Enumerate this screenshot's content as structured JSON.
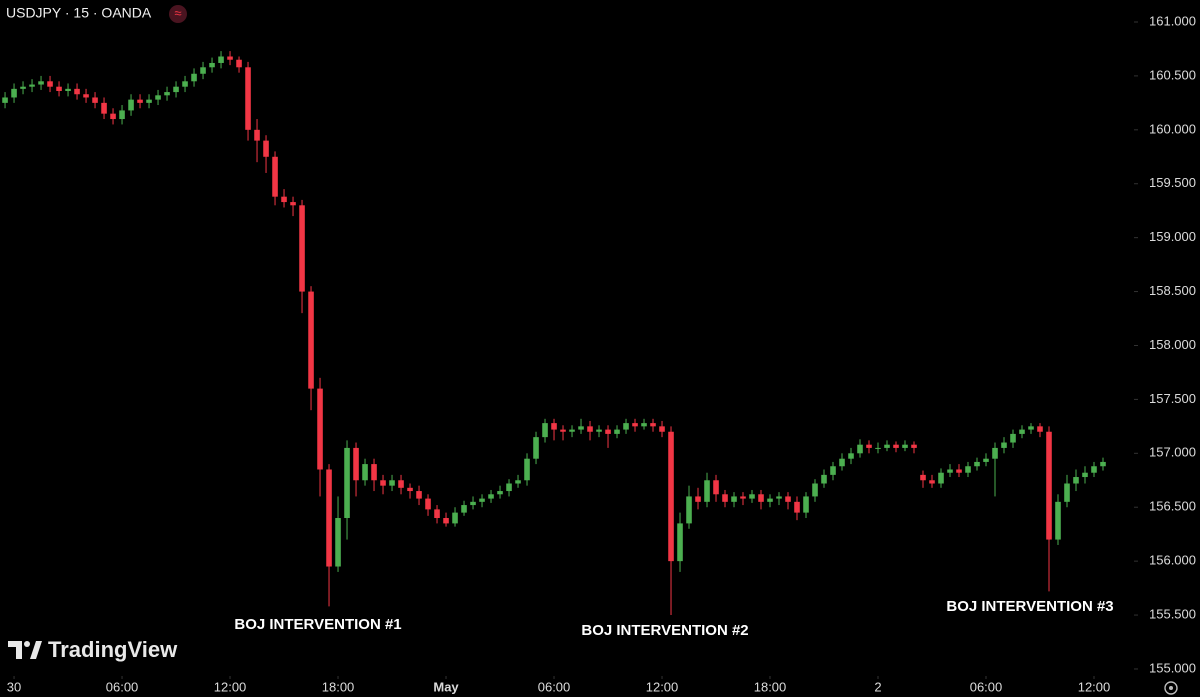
{
  "chart_data": {
    "type": "candlestick",
    "title": "USDJPY · 15 · OANDA",
    "status_icon": "≈",
    "brand": "TradingView",
    "up_color": "#4caf50",
    "down_color": "#f23645",
    "annotations": [
      "BOJ INTERVENTION #1",
      "BOJ INTERVENTION #2",
      "BOJ INTERVENTION #3"
    ],
    "xlim": [
      -0.78,
      62
    ],
    "xticks": [
      {
        "value": 0,
        "label": "30"
      },
      {
        "value": 6,
        "label": "06:00"
      },
      {
        "value": 12,
        "label": "12:00"
      },
      {
        "value": 18,
        "label": "18:00"
      },
      {
        "value": 24,
        "label": "May"
      },
      {
        "value": 30,
        "label": "06:00"
      },
      {
        "value": 36,
        "label": "12:00"
      },
      {
        "value": 42,
        "label": "18:00"
      },
      {
        "value": 48,
        "label": "2"
      },
      {
        "value": 54,
        "label": "06:00"
      },
      {
        "value": 60,
        "label": "12:00"
      }
    ],
    "ylim": [
      154.74,
      161.204
    ],
    "yticks": [
      {
        "value": 155,
        "label": "155.000"
      },
      {
        "value": 155.5,
        "label": "155.500"
      },
      {
        "value": 156,
        "label": "156.000"
      },
      {
        "value": 156.5,
        "label": "156.500"
      },
      {
        "value": 157,
        "label": "157.000"
      },
      {
        "value": 157.5,
        "label": "157.500"
      },
      {
        "value": 158,
        "label": "158.000"
      },
      {
        "value": 158.5,
        "label": "158.500"
      },
      {
        "value": 159,
        "label": "159.000"
      },
      {
        "value": 159.5,
        "label": "159.500"
      },
      {
        "value": 160,
        "label": "160.000"
      },
      {
        "value": 160.5,
        "label": "160.500"
      },
      {
        "value": 161,
        "label": "161.000"
      }
    ],
    "x": [
      -0.5,
      0,
      0.5,
      1,
      1.5,
      2,
      2.5,
      3,
      3.5,
      4,
      4.5,
      5,
      5.5,
      6,
      6.5,
      7,
      7.5,
      8,
      8.5,
      9,
      9.5,
      10,
      10.5,
      11,
      11.5,
      12,
      12.5,
      13,
      13.5,
      14,
      14.5,
      15,
      15.5,
      16,
      16.5,
      17,
      17.5,
      18,
      18.5,
      19,
      19.5,
      20,
      20.5,
      21,
      21.5,
      22,
      22.5,
      23,
      23.5,
      24,
      24.5,
      25,
      25.5,
      26,
      26.5,
      27,
      27.5,
      28,
      28.5,
      29,
      29.5,
      30,
      30.5,
      31,
      31.5,
      32,
      32.5,
      33,
      33.5,
      34,
      34.5,
      35,
      35.5,
      36,
      36.5,
      37,
      37.5,
      38,
      38.5,
      39,
      39.5,
      40,
      40.5,
      41,
      41.5,
      42,
      42.5,
      43,
      43.5,
      44,
      44.5,
      45,
      45.5,
      46,
      46.5,
      47,
      47.5,
      48,
      48.5,
      49,
      49.5,
      50,
      50.5,
      51,
      51.5,
      52,
      52.5,
      53,
      53.5,
      54,
      54.5,
      55,
      55.5,
      56,
      56.5,
      57,
      57.5,
      58,
      58.5,
      59,
      59.5,
      60,
      60.5
    ],
    "open": [
      160.25,
      160.3,
      160.38,
      160.4,
      160.42,
      160.45,
      160.4,
      160.36,
      160.38,
      160.33,
      160.3,
      160.25,
      160.15,
      160.1,
      160.18,
      160.28,
      160.25,
      160.28,
      160.32,
      160.35,
      160.4,
      160.45,
      160.52,
      160.58,
      160.62,
      160.68,
      160.65,
      160.58,
      160.0,
      159.9,
      159.75,
      159.38,
      159.33,
      159.3,
      158.5,
      157.6,
      156.85,
      155.95,
      156.4,
      157.05,
      156.75,
      156.9,
      156.75,
      156.7,
      156.75,
      156.68,
      156.65,
      156.58,
      156.48,
      156.4,
      156.35,
      156.45,
      156.52,
      156.55,
      156.58,
      156.62,
      156.65,
      156.72,
      156.75,
      156.95,
      157.15,
      157.28,
      157.22,
      157.2,
      157.22,
      157.25,
      157.2,
      157.22,
      157.18,
      157.22,
      157.28,
      157.25,
      157.28,
      157.25,
      157.2,
      156.0,
      156.35,
      156.6,
      156.55,
      156.75,
      156.62,
      156.55,
      156.6,
      156.58,
      156.62,
      156.55,
      156.58,
      156.6,
      156.55,
      156.45,
      156.6,
      156.72,
      156.8,
      156.88,
      156.95,
      157.0,
      157.08,
      157.05,
      157.05,
      157.08,
      157.05,
      157.08,
      156.8,
      156.75,
      156.72,
      156.82,
      156.85,
      156.82,
      156.88,
      156.92,
      156.95,
      157.05,
      157.1,
      157.18,
      157.22,
      157.25,
      157.2,
      156.2,
      156.55,
      156.72,
      156.78,
      156.82,
      156.88
    ],
    "high": [
      160.35,
      160.43,
      160.45,
      160.47,
      160.5,
      160.5,
      160.45,
      160.43,
      160.43,
      160.38,
      160.35,
      160.3,
      160.2,
      160.23,
      160.33,
      160.33,
      160.33,
      160.37,
      160.4,
      160.45,
      160.5,
      160.57,
      160.63,
      160.67,
      160.73,
      160.73,
      160.68,
      160.63,
      160.1,
      159.95,
      159.8,
      159.45,
      159.38,
      159.35,
      158.55,
      157.7,
      156.9,
      156.6,
      157.12,
      157.1,
      156.95,
      156.95,
      156.8,
      156.8,
      156.8,
      156.72,
      156.7,
      156.62,
      156.52,
      156.45,
      156.5,
      156.56,
      156.6,
      156.62,
      156.66,
      156.7,
      156.76,
      156.8,
      157.0,
      157.2,
      157.32,
      157.32,
      157.26,
      157.26,
      157.32,
      157.3,
      157.26,
      157.26,
      157.26,
      157.32,
      157.32,
      157.32,
      157.32,
      157.3,
      157.25,
      156.45,
      156.7,
      156.68,
      156.82,
      156.8,
      156.66,
      156.64,
      156.64,
      156.66,
      156.66,
      156.62,
      156.64,
      156.64,
      156.6,
      156.64,
      156.76,
      156.85,
      156.92,
      157.0,
      157.05,
      157.13,
      157.12,
      157.1,
      157.12,
      157.11,
      157.12,
      157.11,
      156.84,
      156.8,
      156.86,
      156.9,
      156.9,
      156.92,
      156.96,
      157.0,
      157.1,
      157.15,
      157.22,
      157.26,
      157.28,
      157.28,
      157.25,
      156.62,
      156.8,
      156.85,
      156.88,
      156.92,
      156.96
    ],
    "low": [
      160.2,
      160.25,
      160.33,
      160.35,
      160.37,
      160.35,
      160.31,
      160.31,
      160.28,
      160.25,
      160.2,
      160.1,
      160.05,
      160.05,
      160.13,
      160.2,
      160.2,
      160.23,
      160.27,
      160.3,
      160.35,
      160.4,
      160.47,
      160.53,
      160.57,
      160.6,
      160.53,
      159.9,
      159.7,
      159.6,
      159.3,
      159.28,
      159.2,
      158.3,
      157.4,
      156.6,
      155.58,
      155.9,
      156.2,
      156.6,
      156.7,
      156.65,
      156.62,
      156.65,
      156.62,
      156.58,
      156.52,
      156.42,
      156.35,
      156.32,
      156.32,
      156.42,
      156.48,
      156.5,
      156.54,
      156.58,
      156.6,
      156.68,
      156.7,
      156.9,
      157.1,
      157.12,
      157.12,
      157.15,
      157.18,
      157.12,
      157.15,
      157.05,
      157.14,
      157.18,
      157.2,
      157.22,
      157.2,
      157.15,
      155.5,
      155.9,
      156.3,
      156.48,
      156.5,
      156.55,
      156.5,
      156.5,
      156.52,
      156.54,
      156.48,
      156.5,
      156.52,
      156.48,
      156.38,
      156.4,
      156.55,
      156.68,
      156.75,
      156.84,
      156.9,
      156.96,
      157.0,
      157.0,
      157.02,
      157.01,
      157.02,
      157.0,
      156.68,
      156.68,
      156.68,
      156.78,
      156.78,
      156.78,
      156.84,
      156.88,
      156.6,
      157.0,
      157.05,
      157.14,
      157.18,
      157.15,
      155.72,
      156.15,
      156.5,
      156.65,
      156.72,
      156.78,
      156.84
    ],
    "close": [
      160.3,
      160.38,
      160.4,
      160.42,
      160.45,
      160.4,
      160.36,
      160.38,
      160.33,
      160.3,
      160.25,
      160.15,
      160.1,
      160.18,
      160.28,
      160.25,
      160.28,
      160.32,
      160.35,
      160.4,
      160.45,
      160.52,
      160.58,
      160.62,
      160.68,
      160.65,
      160.58,
      160.0,
      159.9,
      159.75,
      159.38,
      159.33,
      159.3,
      158.5,
      157.6,
      156.85,
      155.95,
      156.4,
      157.05,
      156.75,
      156.9,
      156.75,
      156.7,
      156.75,
      156.68,
      156.65,
      156.58,
      156.48,
      156.4,
      156.35,
      156.45,
      156.52,
      156.55,
      156.58,
      156.62,
      156.65,
      156.72,
      156.75,
      156.95,
      157.15,
      157.28,
      157.22,
      157.2,
      157.22,
      157.25,
      157.2,
      157.22,
      157.18,
      157.22,
      157.28,
      157.25,
      157.28,
      157.25,
      157.2,
      156.0,
      156.35,
      156.6,
      156.55,
      156.75,
      156.62,
      156.55,
      156.6,
      156.58,
      156.62,
      156.55,
      156.58,
      156.6,
      156.55,
      156.45,
      156.6,
      156.72,
      156.8,
      156.88,
      156.95,
      157.0,
      157.08,
      157.05,
      157.05,
      157.08,
      157.05,
      157.08,
      157.05,
      156.75,
      156.72,
      156.82,
      156.85,
      156.82,
      156.88,
      156.92,
      156.95,
      157.05,
      157.1,
      157.18,
      157.22,
      157.25,
      157.2,
      156.2,
      156.55,
      156.72,
      156.78,
      156.82,
      156.88,
      156.92
    ]
  }
}
